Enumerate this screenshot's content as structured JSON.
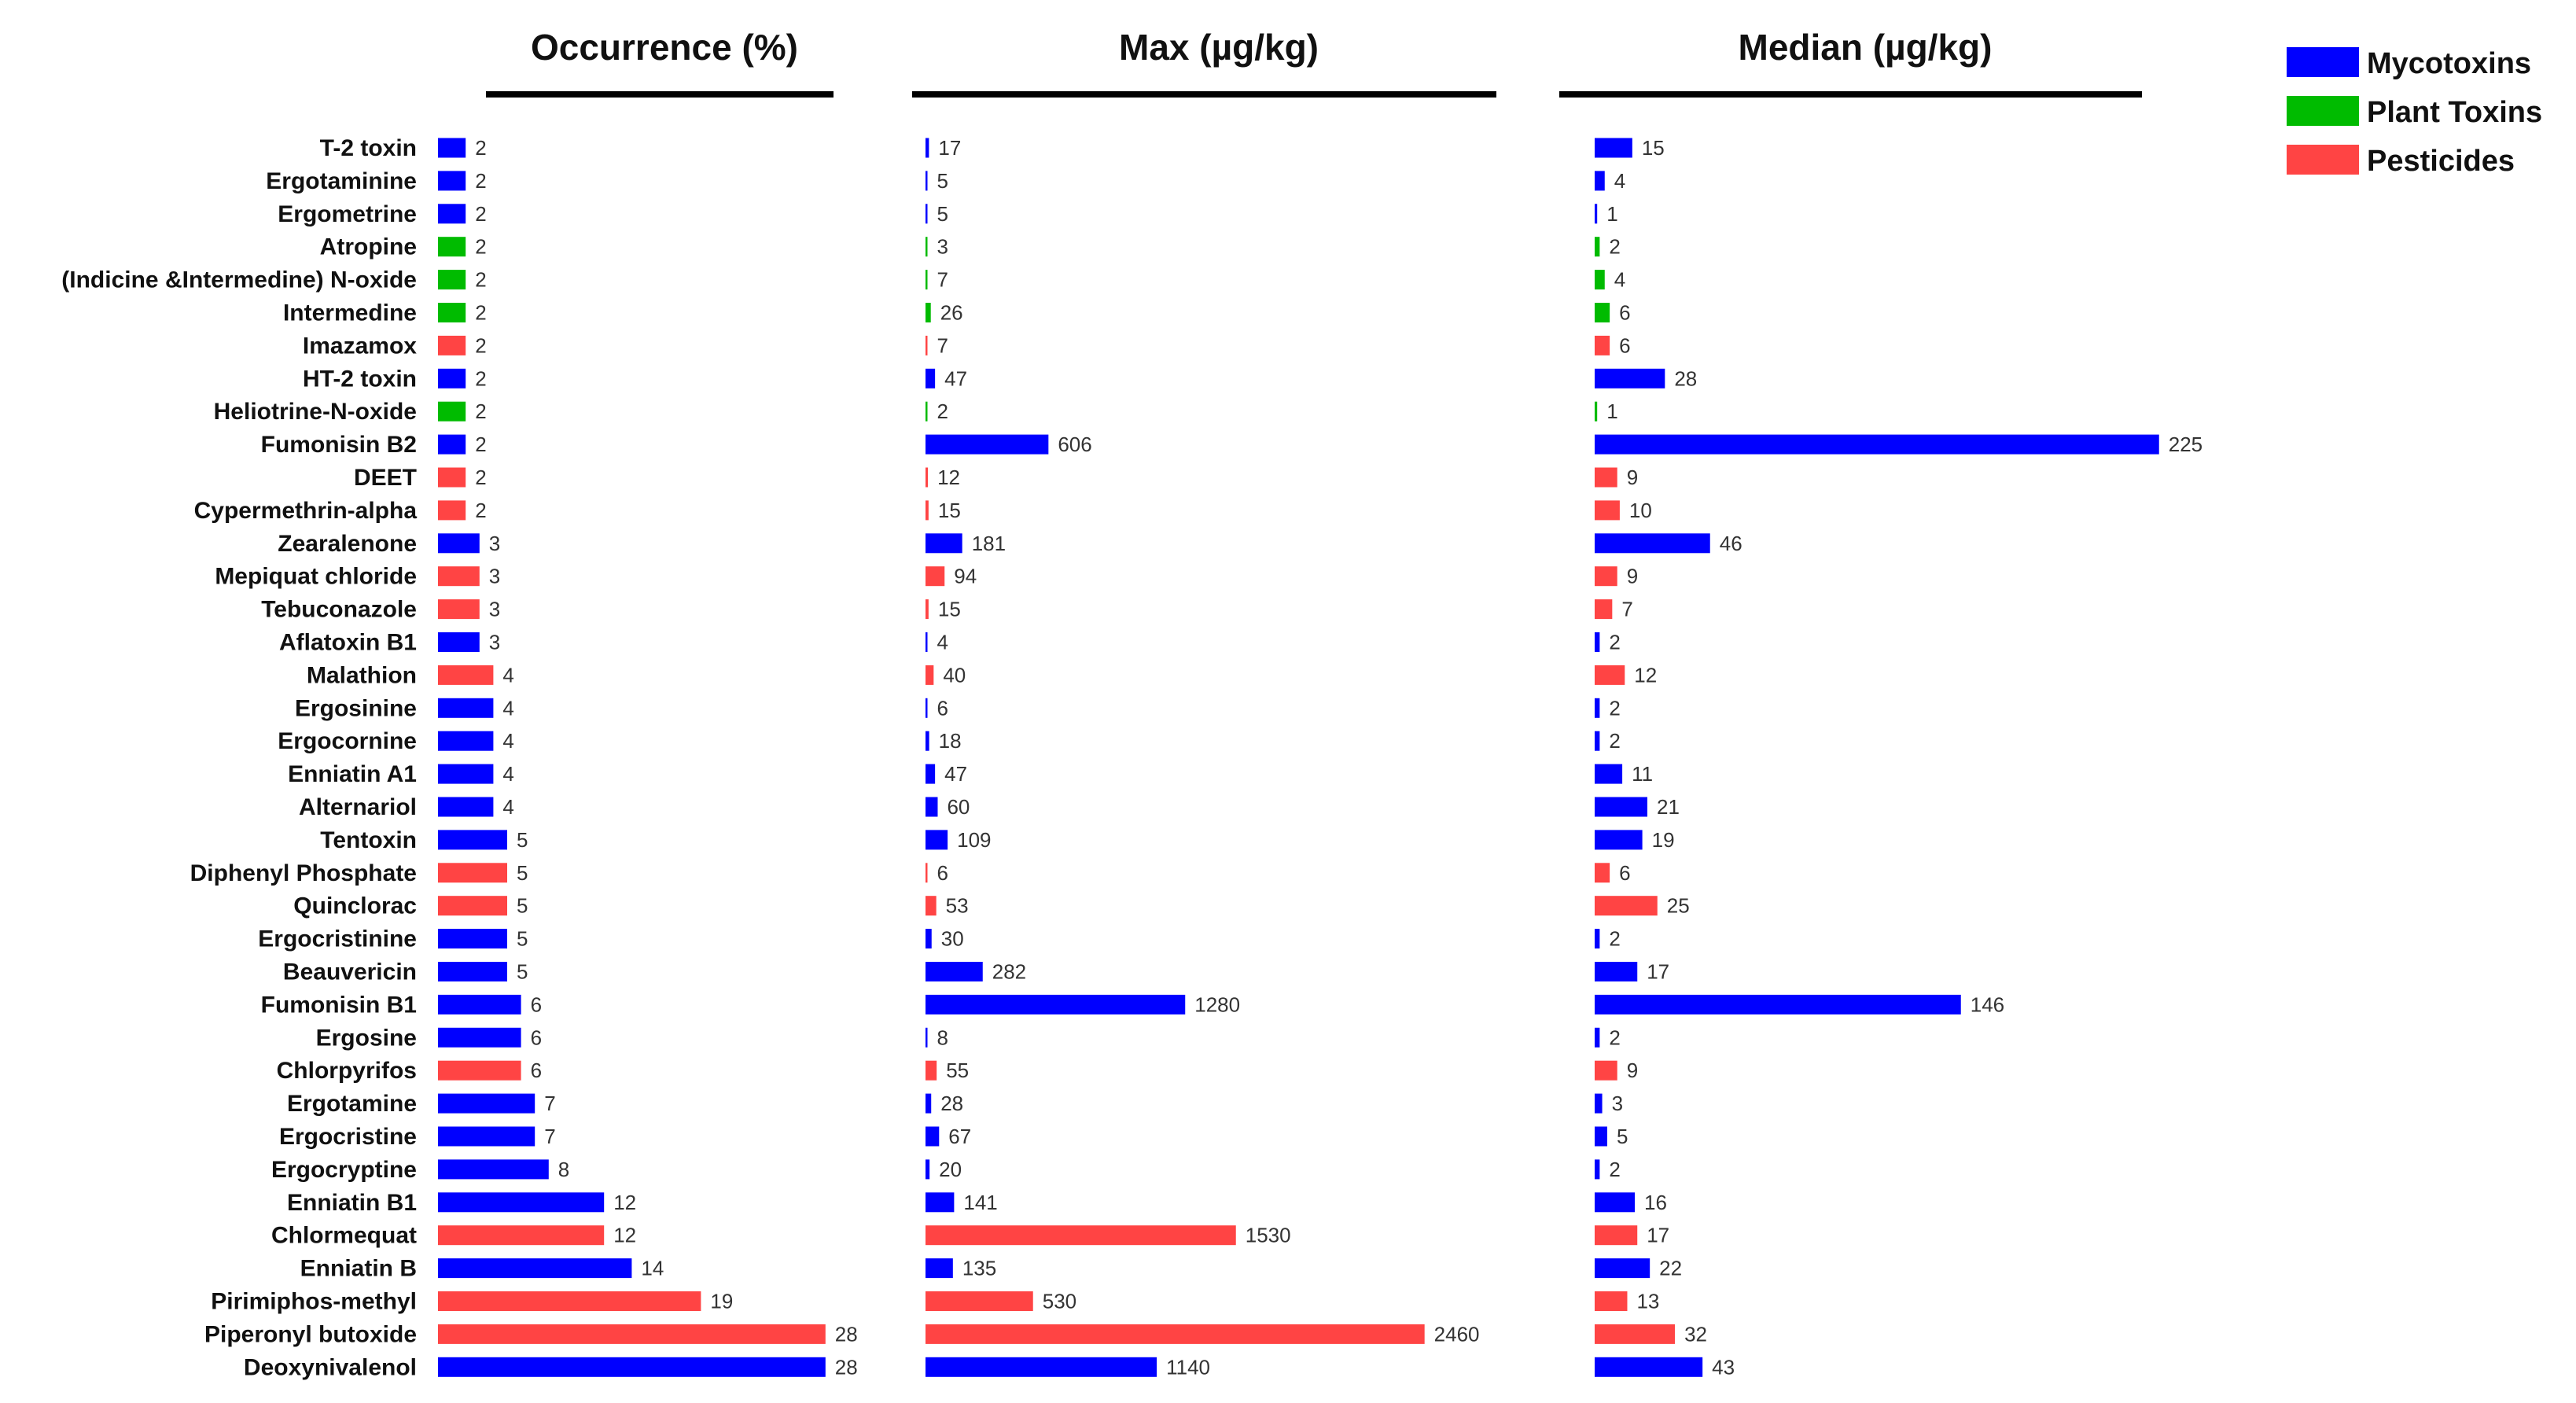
{
  "chart_data": {
    "type": "bar",
    "orientation": "horizontal",
    "panels": [
      {
        "key": "occurrence",
        "title": "Occurrence (%)"
      },
      {
        "key": "max",
        "title": "Max (µg/kg)"
      },
      {
        "key": "median",
        "title": "Median (µg/kg)"
      }
    ],
    "legend": {
      "position": "top-right",
      "items": [
        {
          "name": "Mycotoxins",
          "color": "#0000FF"
        },
        {
          "name": "Plant Toxins",
          "color": "#00BB00"
        },
        {
          "name": "Pesticides",
          "color": "#FF4444"
        }
      ]
    },
    "rows": [
      {
        "name": "T-2 toxin",
        "group": "Mycotoxins",
        "occurrence": 2,
        "max": 17,
        "median": 15
      },
      {
        "name": "Ergotaminine",
        "group": "Mycotoxins",
        "occurrence": 2,
        "max": 5,
        "median": 4
      },
      {
        "name": "Ergometrine",
        "group": "Mycotoxins",
        "occurrence": 2,
        "max": 5,
        "median": 1
      },
      {
        "name": "Atropine",
        "group": "Plant Toxins",
        "occurrence": 2,
        "max": 3,
        "median": 2
      },
      {
        "name": "(Indicine &Intermedine) N-oxide",
        "group": "Plant Toxins",
        "occurrence": 2,
        "max": 7,
        "median": 4
      },
      {
        "name": "Intermedine",
        "group": "Plant Toxins",
        "occurrence": 2,
        "max": 26,
        "median": 6
      },
      {
        "name": "Imazamox",
        "group": "Pesticides",
        "occurrence": 2,
        "max": 7,
        "median": 6
      },
      {
        "name": "HT-2 toxin",
        "group": "Mycotoxins",
        "occurrence": 2,
        "max": 47,
        "median": 28
      },
      {
        "name": "Heliotrine-N-oxide",
        "group": "Plant Toxins",
        "occurrence": 2,
        "max": 2,
        "median": 1
      },
      {
        "name": "Fumonisin B2",
        "group": "Mycotoxins",
        "occurrence": 2,
        "max": 606,
        "median": 225
      },
      {
        "name": "DEET",
        "group": "Pesticides",
        "occurrence": 2,
        "max": 12,
        "median": 9
      },
      {
        "name": "Cypermethrin-alpha",
        "group": "Pesticides",
        "occurrence": 2,
        "max": 15,
        "median": 10
      },
      {
        "name": "Zearalenone",
        "group": "Mycotoxins",
        "occurrence": 3,
        "max": 181,
        "median": 46
      },
      {
        "name": "Mepiquat chloride",
        "group": "Pesticides",
        "occurrence": 3,
        "max": 94,
        "median": 9
      },
      {
        "name": "Tebuconazole",
        "group": "Pesticides",
        "occurrence": 3,
        "max": 15,
        "median": 7
      },
      {
        "name": "Aflatoxin B1",
        "group": "Mycotoxins",
        "occurrence": 3,
        "max": 4,
        "median": 2
      },
      {
        "name": "Malathion",
        "group": "Pesticides",
        "occurrence": 4,
        "max": 40,
        "median": 12
      },
      {
        "name": "Ergosinine",
        "group": "Mycotoxins",
        "occurrence": 4,
        "max": 6,
        "median": 2
      },
      {
        "name": "Ergocornine",
        "group": "Mycotoxins",
        "occurrence": 4,
        "max": 18,
        "median": 2
      },
      {
        "name": "Enniatin A1",
        "group": "Mycotoxins",
        "occurrence": 4,
        "max": 47,
        "median": 11
      },
      {
        "name": "Alternariol",
        "group": "Mycotoxins",
        "occurrence": 4,
        "max": 60,
        "median": 21
      },
      {
        "name": "Tentoxin",
        "group": "Mycotoxins",
        "occurrence": 5,
        "max": 109,
        "median": 19
      },
      {
        "name": "Diphenyl Phosphate",
        "group": "Pesticides",
        "occurrence": 5,
        "max": 6,
        "median": 6
      },
      {
        "name": "Quinclorac",
        "group": "Pesticides",
        "occurrence": 5,
        "max": 53,
        "median": 25
      },
      {
        "name": "Ergocristinine",
        "group": "Mycotoxins",
        "occurrence": 5,
        "max": 30,
        "median": 2
      },
      {
        "name": "Beauvericin",
        "group": "Mycotoxins",
        "occurrence": 5,
        "max": 282,
        "median": 17
      },
      {
        "name": "Fumonisin B1",
        "group": "Mycotoxins",
        "occurrence": 6,
        "max": 1280,
        "median": 146
      },
      {
        "name": "Ergosine",
        "group": "Mycotoxins",
        "occurrence": 6,
        "max": 8,
        "median": 2
      },
      {
        "name": "Chlorpyrifos",
        "group": "Pesticides",
        "occurrence": 6,
        "max": 55,
        "median": 9
      },
      {
        "name": "Ergotamine",
        "group": "Mycotoxins",
        "occurrence": 7,
        "max": 28,
        "median": 3
      },
      {
        "name": "Ergocristine",
        "group": "Mycotoxins",
        "occurrence": 7,
        "max": 67,
        "median": 5
      },
      {
        "name": "Ergocryptine",
        "group": "Mycotoxins",
        "occurrence": 8,
        "max": 20,
        "median": 2
      },
      {
        "name": "Enniatin B1",
        "group": "Mycotoxins",
        "occurrence": 12,
        "max": 141,
        "median": 16
      },
      {
        "name": "Chlormequat",
        "group": "Pesticides",
        "occurrence": 12,
        "max": 1530,
        "median": 17
      },
      {
        "name": "Enniatin B",
        "group": "Mycotoxins",
        "occurrence": 14,
        "max": 135,
        "median": 22
      },
      {
        "name": "Pirimiphos-methyl",
        "group": "Pesticides",
        "occurrence": 19,
        "max": 530,
        "median": 13
      },
      {
        "name": "Piperonyl butoxide",
        "group": "Pesticides",
        "occurrence": 28,
        "max": 2460,
        "median": 32
      },
      {
        "name": "Deoxynivalenol",
        "group": "Mycotoxins",
        "occurrence": 28,
        "max": 1140,
        "median": 43
      }
    ]
  }
}
